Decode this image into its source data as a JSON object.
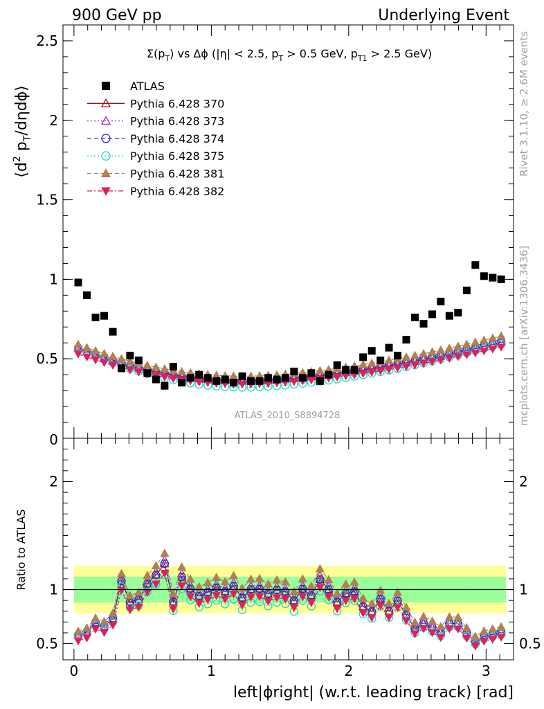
{
  "header": {
    "left": "900 GeV pp",
    "right": "Underlying Event"
  },
  "plot_title": {
    "sigma": "Σ(p",
    "sigma_sub": "T",
    "rest1": ") vs Δϕ (|η| < 2.5, p",
    "pt_sub": "T",
    "rest2": " > 0.5 GeV, p",
    "pt1_sub": "T1",
    "rest3": " > 2.5 GeV)"
  },
  "y_label_main": {
    "p1": "⟨d",
    "sup": "2",
    "p2": " p",
    "sub": "T",
    "p3": "/dηdϕ⟩"
  },
  "y_label_ratio": "Ratio to ATLAS",
  "x_label": "left|ϕright| (w.r.t. leading track) [rad]",
  "side_text": {
    "rivet": "Rivet 3.1.10, ≥ 2.6M events",
    "mcplots": "mcplots.cern.ch [arXiv:1306.3436]"
  },
  "analysis_tag": "ATLAS_2010_S8894728",
  "main_ticks": {
    "y": [
      "0.5",
      "1",
      "1.5",
      "2",
      "2.5"
    ],
    "y_values": [
      0.5,
      1,
      1.5,
      2,
      2.5
    ],
    "y_cut_label": "0"
  },
  "ratio_ticks": {
    "y": [
      "0.5",
      "1",
      "2"
    ],
    "y_values": [
      0.5,
      1,
      2
    ]
  },
  "x_ticks": {
    "labels": [
      "0",
      "1",
      "2",
      "3"
    ],
    "values": [
      0,
      1,
      2,
      3
    ]
  },
  "legend": [
    {
      "name": "ATLAS",
      "marker": "filled-square",
      "color": "#000000",
      "line": "none"
    },
    {
      "name": "Pythia 6.428 370",
      "marker": "open-triangle-up",
      "color": "#8b1a1a",
      "line": "solid"
    },
    {
      "name": "Pythia 6.428 373",
      "marker": "open-triangle-up",
      "color": "#8a2be2",
      "line": "dotted"
    },
    {
      "name": "Pythia 6.428 374",
      "marker": "open-circle",
      "color": "#2b2bd6",
      "line": "dashed"
    },
    {
      "name": "Pythia 6.428 375",
      "marker": "open-circle",
      "color": "#20d6c8",
      "line": "dotted"
    },
    {
      "name": "Pythia 6.428 381",
      "marker": "filled-triangle-up",
      "color": "#b08050",
      "line": "dashed"
    },
    {
      "name": "Pythia 6.428 382",
      "marker": "filled-triangle-down",
      "color": "#e0205a",
      "line": "dashdot"
    }
  ],
  "chart_data": {
    "type": "scatter",
    "x_range": [
      -0.08,
      3.2
    ],
    "main": {
      "ylim": [
        0,
        2.6
      ],
      "atlas": {
        "x": [
          0.031,
          0.094,
          0.157,
          0.22,
          0.283,
          0.346,
          0.408,
          0.471,
          0.534,
          0.597,
          0.66,
          0.723,
          0.785,
          0.848,
          0.911,
          0.974,
          1.037,
          1.1,
          1.162,
          1.225,
          1.288,
          1.351,
          1.414,
          1.477,
          1.539,
          1.602,
          1.665,
          1.728,
          1.791,
          1.854,
          1.916,
          1.979,
          2.042,
          2.105,
          2.168,
          2.231,
          2.293,
          2.356,
          2.419,
          2.482,
          2.545,
          2.608,
          2.67,
          2.733,
          2.796,
          2.859,
          2.922,
          2.985,
          3.048,
          3.11
        ],
        "y": [
          0.98,
          0.9,
          0.76,
          0.77,
          0.67,
          0.44,
          0.52,
          0.49,
          0.41,
          0.37,
          0.33,
          0.45,
          0.35,
          0.38,
          0.4,
          0.38,
          0.36,
          0.37,
          0.35,
          0.39,
          0.36,
          0.36,
          0.38,
          0.37,
          0.38,
          0.42,
          0.38,
          0.41,
          0.36,
          0.4,
          0.46,
          0.43,
          0.43,
          0.51,
          0.55,
          0.49,
          0.57,
          0.52,
          0.62,
          0.76,
          0.72,
          0.78,
          0.86,
          0.77,
          0.79,
          0.93,
          1.09,
          1.02,
          1.01,
          1.0
        ]
      },
      "series_baseline": [
        {
          "name": "Pythia 6.428 370",
          "start": 0.58,
          "min": 0.36,
          "end": 0.61
        },
        {
          "name": "Pythia 6.428 373",
          "start": 0.59,
          "min": 0.37,
          "end": 0.63
        },
        {
          "name": "Pythia 6.428 374",
          "start": 0.58,
          "min": 0.36,
          "end": 0.61
        },
        {
          "name": "Pythia 6.428 375",
          "start": 0.58,
          "min": 0.32,
          "end": 0.6
        },
        {
          "name": "Pythia 6.428 381",
          "start": 0.6,
          "min": 0.39,
          "end": 0.65
        },
        {
          "name": "Pythia 6.428 382",
          "start": 0.54,
          "min": 0.34,
          "end": 0.58
        }
      ]
    },
    "ratio": {
      "ylim": [
        0.35,
        2.4
      ],
      "reference_line": 1,
      "green_band": [
        0.88,
        1.12
      ],
      "yellow_band": [
        0.78,
        1.22
      ],
      "offsets": [
        0.0,
        0.02,
        0.0,
        -0.03,
        0.04,
        -0.05
      ]
    }
  },
  "colors": {
    "green_band": "#99ff99",
    "yellow_band": "#ffff99"
  }
}
